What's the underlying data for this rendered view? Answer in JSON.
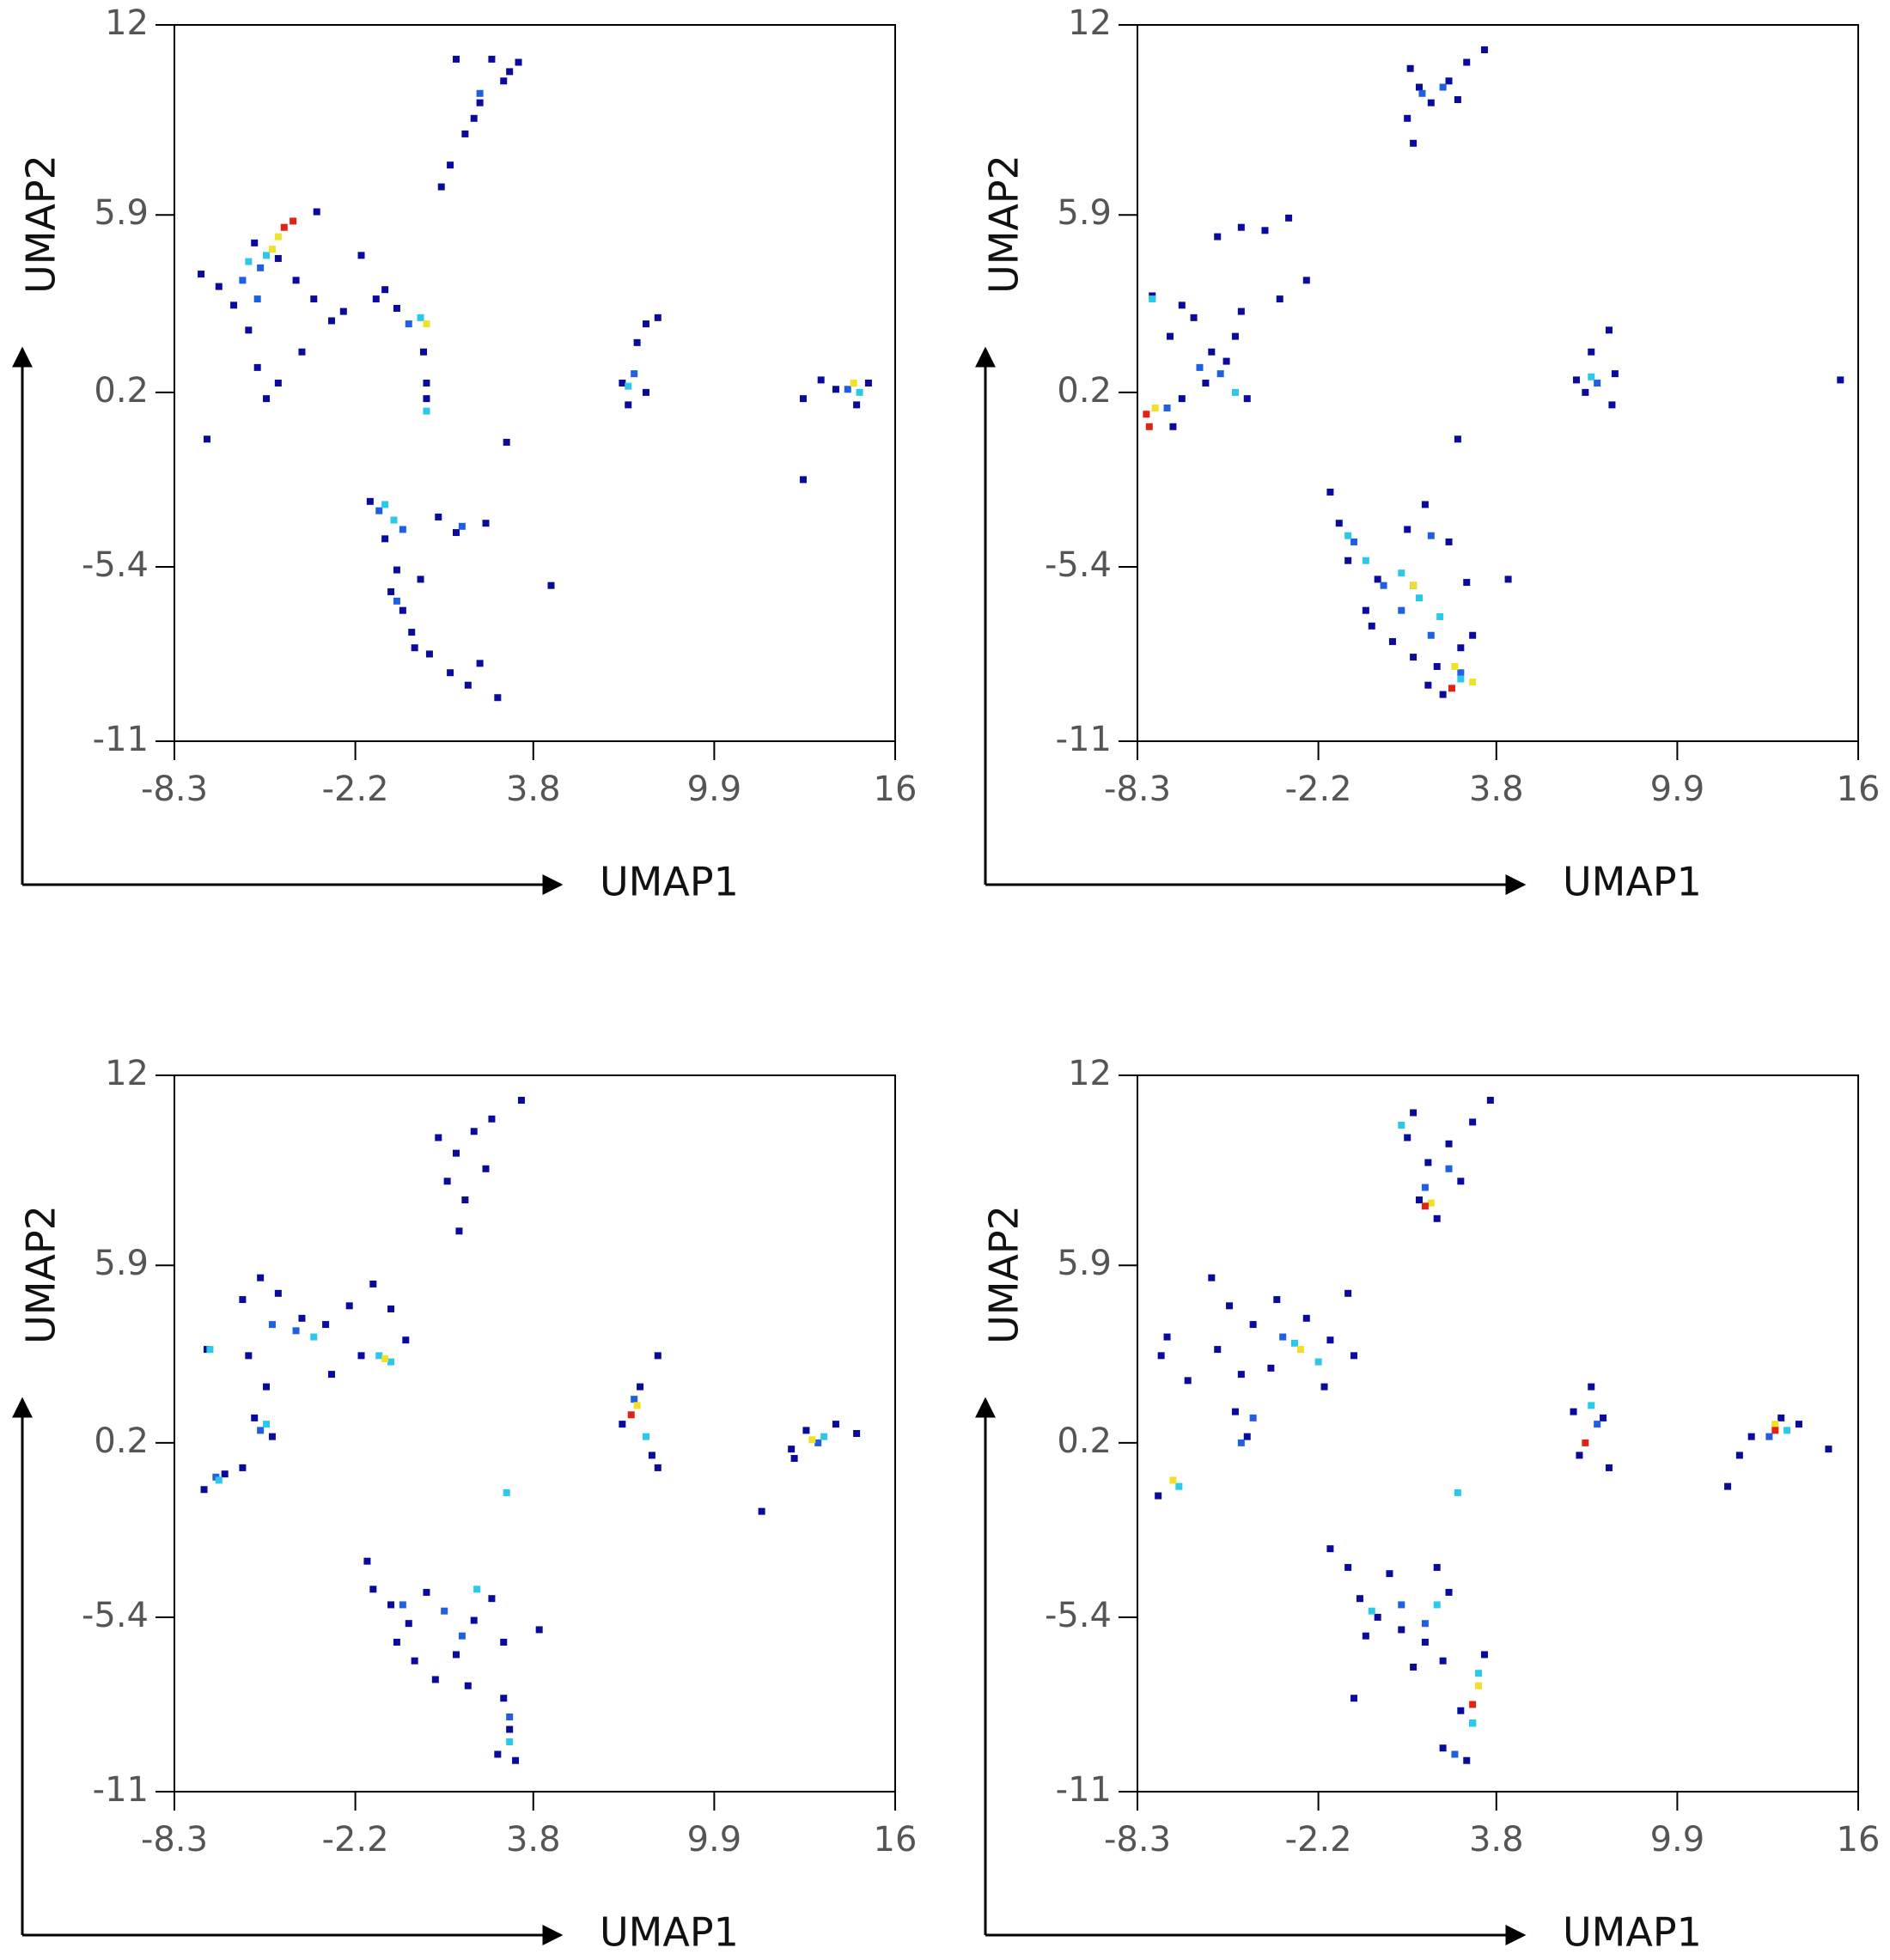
{
  "chart_data": [
    {
      "type": "scatter",
      "x_label": "UMAP1",
      "y_label": "UMAP2",
      "xlim": [
        -8.3,
        16
      ],
      "ylim": [
        -11,
        12
      ],
      "xticks": [
        -8.3,
        -2.2,
        3.8,
        9.9,
        16
      ],
      "yticks": [
        12,
        5.9,
        0.2,
        -5.4,
        -11
      ],
      "series": [
        {
          "color": "#0a0a9c",
          "x": [
            1.0,
            1.5,
            2.0,
            2.8,
            3.3,
            1.2,
            2.4,
            0.7,
            1.8,
            3.0,
            -7.4,
            -6.8,
            -6.3,
            -5.8,
            -5.5,
            -5.2,
            -4.8,
            -4.2,
            -3.6,
            -3.0,
            -2.6,
            -2.0,
            -1.5,
            -0.8,
            -5.6,
            -3.5,
            -4.0,
            -4.8,
            0.1,
            0.2,
            0.2,
            -1.2,
            6.8,
            7.3,
            7.6,
            8.0,
            7.0,
            7.6,
            12.9,
            13.5,
            14.0,
            14.7,
            15.1,
            12.9,
            -1.7,
            -1.2,
            -0.8,
            -0.6,
            -0.3,
            0.3,
            1.0,
            1.6,
            2.6,
            2.0,
            1.2,
            2.2,
            -1.0,
            0.0,
            0.6,
            -0.2,
            -7.2,
            2.9,
            4.4
          ],
          "values": [
            7.5,
            8.5,
            9.5,
            10.2,
            10.8,
            10.9,
            10.9,
            6.8,
            9.0,
            10.5,
            4.0,
            3.6,
            3.0,
            2.2,
            1.0,
            0.0,
            4.5,
            3.8,
            3.2,
            2.5,
            2.8,
            4.6,
            3.2,
            2.9,
            5.0,
            6.0,
            1.5,
            0.5,
            1.5,
            0.5,
            0.0,
            3.5,
            0.5,
            1.8,
            2.4,
            2.6,
            -0.2,
            0.2,
            0.0,
            0.6,
            0.3,
            -0.2,
            0.5,
            -2.6,
            -3.3,
            -4.5,
            -5.5,
            -6.8,
            -7.5,
            -8.2,
            -8.8,
            -9.2,
            -9.6,
            -8.5,
            -4.3,
            -4.0,
            -6.2,
            -5.8,
            -3.8,
            -8.0,
            -1.3,
            -1.4,
            -6.0
          ]
        },
        {
          "color": "#1f5fe0",
          "x": [
            -6.0,
            -5.5,
            -5.4,
            -0.4,
            7.2,
            14.4,
            -1.4,
            -0.6,
            1.4,
            2.0,
            -0.8
          ],
          "values": [
            3.8,
            3.2,
            4.2,
            2.4,
            0.8,
            0.3,
            -3.6,
            -4.2,
            -4.1,
            9.8,
            -6.5
          ]
        },
        {
          "color": "#2cc8e8",
          "x": [
            -5.8,
            -5.2,
            0.0,
            0.2,
            7.0,
            14.8,
            -0.9,
            -1.2
          ],
          "values": [
            4.4,
            4.6,
            2.6,
            -0.4,
            0.4,
            0.2,
            -3.9,
            -3.4
          ]
        },
        {
          "color": "#f0e028",
          "x": [
            -4.8,
            -5.0,
            0.2,
            14.6
          ],
          "values": [
            5.2,
            4.8,
            2.4,
            0.5
          ]
        },
        {
          "color": "#e02414",
          "x": [
            -4.6,
            -4.3
          ],
          "values": [
            5.5,
            5.7
          ]
        }
      ]
    },
    {
      "type": "scatter",
      "x_label": "UMAP1",
      "y_label": "UMAP2",
      "xlim": [
        -8.3,
        16
      ],
      "ylim": [
        -11,
        12
      ],
      "xticks": [
        -8.3,
        -2.2,
        3.8,
        9.9,
        16
      ],
      "yticks": [
        12,
        5.9,
        0.2,
        -5.4,
        -11
      ],
      "series": [
        {
          "color": "#0a0a9c",
          "x": [
            0.8,
            1.2,
            1.6,
            2.2,
            2.8,
            3.4,
            1.0,
            0.9,
            2.5,
            -7.8,
            -7.2,
            -6.8,
            -6.4,
            -5.8,
            -5.3,
            -5.0,
            -4.8,
            -6.0,
            -6.8,
            -5.6,
            -4.8,
            -4.0,
            -3.2,
            -2.6,
            -7.1,
            -3.5,
            -4.6,
            6.5,
            7.0,
            7.6,
            7.8,
            7.7,
            6.8,
            15.4,
            2.5,
            4.2,
            -1.8,
            -1.5,
            -1.2,
            -0.6,
            -0.4,
            0.3,
            1.0,
            1.8,
            2.6,
            3.0,
            2.2,
            2.8,
            -0.2,
            0.8,
            1.4,
            1.0,
            1.5,
            2.0
          ],
          "values": [
            9.0,
            10.0,
            9.5,
            10.2,
            10.8,
            11.2,
            8.2,
            10.6,
            9.6,
            3.3,
            2.0,
            3.0,
            2.6,
            1.5,
            1.2,
            2.0,
            2.8,
            0.5,
            0.0,
            5.2,
            5.5,
            5.4,
            5.8,
            3.8,
            -0.9,
            3.2,
            0.0,
            0.6,
            1.5,
            2.2,
            0.8,
            -0.2,
            0.2,
            0.6,
            -1.3,
            -5.8,
            -3.0,
            -4.0,
            -5.2,
            -6.8,
            -7.3,
            -7.8,
            -8.3,
            -8.6,
            -8.0,
            -7.6,
            -4.6,
            -5.9,
            -5.8,
            -4.2,
            -3.4,
            -6.0,
            -9.2,
            -9.5
          ]
        },
        {
          "color": "#1f5fe0",
          "x": [
            1.3,
            2.0,
            -6.2,
            -5.5,
            -7.3,
            7.2,
            -1.0,
            0.0,
            0.6,
            1.6,
            2.6,
            1.6
          ],
          "values": [
            9.8,
            10.0,
            1.0,
            0.8,
            -0.3,
            0.5,
            -4.6,
            -6.0,
            -6.8,
            -7.6,
            -8.8,
            -4.4
          ]
        },
        {
          "color": "#2cc8e8",
          "x": [
            -5.0,
            -7.8,
            7.0,
            -0.6,
            0.6,
            1.2,
            1.9,
            2.6,
            -1.2
          ],
          "values": [
            0.2,
            3.2,
            0.7,
            -5.2,
            -5.6,
            -6.4,
            -7.0,
            -9.0,
            -4.4
          ]
        },
        {
          "color": "#f0e028",
          "x": [
            -7.7,
            1.0,
            2.4,
            3.0
          ],
          "values": [
            -0.3,
            -6.0,
            -8.6,
            -9.1
          ]
        },
        {
          "color": "#e02414",
          "x": [
            -8.0,
            -7.9,
            2.3
          ],
          "values": [
            -0.5,
            -0.9,
            -9.3
          ]
        }
      ]
    },
    {
      "type": "scatter",
      "x_label": "UMAP1",
      "y_label": "UMAP2",
      "xlim": [
        -8.3,
        16
      ],
      "ylim": [
        -11,
        12
      ],
      "xticks": [
        -8.3,
        -2.2,
        3.8,
        9.9,
        16
      ],
      "yticks": [
        12,
        5.9,
        0.2,
        -5.4,
        -11
      ],
      "series": [
        {
          "color": "#0a0a9c",
          "x": [
            0.6,
            1.2,
            1.8,
            2.4,
            3.4,
            1.5,
            1.3,
            2.2,
            0.9,
            -7.2,
            -6.0,
            -5.4,
            -4.8,
            -4.0,
            -3.2,
            -2.4,
            -1.6,
            -1.0,
            -0.5,
            -2.0,
            -5.8,
            -5.2,
            -5.6,
            -5.0,
            -7.3,
            -6.6,
            -6.0,
            -3.0,
            6.8,
            7.4,
            8.0,
            7.8,
            8.0,
            12.5,
            13.0,
            14.0,
            14.7,
            12.6,
            11.5,
            -1.8,
            -1.6,
            -1.0,
            -0.8,
            -0.2,
            0.5,
            1.2,
            1.8,
            2.4,
            2.8,
            4.0,
            2.8,
            3.0,
            2.6,
            3.2,
            0.2,
            -0.4,
            1.6
          ],
          "values": [
            10.0,
            9.5,
            10.2,
            10.6,
            11.2,
            8.0,
            7.0,
            9.0,
            8.6,
            3.2,
            4.8,
            5.5,
            5.0,
            4.2,
            4.0,
            4.6,
            5.3,
            4.5,
            3.5,
            3.0,
            3.0,
            2.0,
            1.0,
            0.4,
            -1.3,
            -0.8,
            -0.6,
            2.4,
            0.8,
            2.0,
            3.0,
            -0.2,
            -0.6,
            0.0,
            0.6,
            0.8,
            0.5,
            -0.3,
            -2.0,
            -3.6,
            -4.5,
            -5.0,
            -6.2,
            -6.8,
            -7.4,
            -6.6,
            -5.5,
            -4.8,
            -6.2,
            -5.8,
            -8.0,
            -9.0,
            -9.8,
            -10.0,
            -4.6,
            -5.6,
            -7.6
          ]
        },
        {
          "color": "#1f5fe0",
          "x": [
            -5.0,
            -4.2,
            -6.9,
            -5.4,
            7.2,
            13.4,
            0.8,
            1.4,
            -0.6,
            3.0
          ],
          "values": [
            4.0,
            3.8,
            -0.9,
            0.6,
            1.6,
            0.2,
            -5.2,
            -6.0,
            -5.0,
            -8.6
          ]
        },
        {
          "color": "#2cc8e8",
          "x": [
            -7.1,
            -3.6,
            -1.0,
            -1.4,
            -5.2,
            7.6,
            13.6,
            2.9,
            1.9,
            3.0,
            -6.8
          ],
          "values": [
            3.2,
            3.6,
            2.8,
            3.0,
            0.8,
            0.4,
            0.4,
            -1.4,
            -4.5,
            -9.4,
            -1.0
          ]
        },
        {
          "color": "#f0e028",
          "x": [
            7.3,
            13.2,
            -1.2
          ],
          "values": [
            1.4,
            0.3,
            2.9
          ]
        },
        {
          "color": "#e02414",
          "x": [
            7.1
          ],
          "values": [
            1.1
          ]
        }
      ]
    },
    {
      "type": "scatter",
      "x_label": "UMAP1",
      "y_label": "UMAP2",
      "xlim": [
        -8.3,
        16
      ],
      "ylim": [
        -11,
        12
      ],
      "xticks": [
        -8.3,
        -2.2,
        3.8,
        9.9,
        16
      ],
      "yticks": [
        12,
        5.9,
        0.2,
        -5.4,
        -11
      ],
      "series": [
        {
          "color": "#0a0a9c",
          "x": [
            0.8,
            1.5,
            2.2,
            3.0,
            3.6,
            1.2,
            1.8,
            2.6,
            1.0,
            -7.3,
            -7.5,
            -5.8,
            -5.2,
            -4.4,
            -3.6,
            -2.6,
            -1.8,
            -1.2,
            -1.0,
            -5.6,
            -4.8,
            -5.0,
            -4.6,
            -6.6,
            -7.6,
            -3.8,
            -2.0,
            6.4,
            7.0,
            7.4,
            7.6,
            6.6,
            12.0,
            12.4,
            13.4,
            14.0,
            15.0,
            11.6,
            -1.8,
            -1.2,
            -0.8,
            -0.2,
            0.6,
            1.4,
            2.2,
            1.8,
            0.2,
            -0.6,
            -1.0,
            2.0,
            2.6,
            2.0,
            2.8,
            3.4,
            1.0
          ],
          "values": [
            10.0,
            9.2,
            9.8,
            10.5,
            11.2,
            8.0,
            7.4,
            8.6,
            10.8,
            3.6,
            3.0,
            5.5,
            4.6,
            4.0,
            4.8,
            4.2,
            3.5,
            5.0,
            3.0,
            3.2,
            2.4,
            1.2,
            0.4,
            2.2,
            -1.5,
            2.6,
            2.0,
            1.2,
            2.0,
            1.0,
            -0.6,
            -0.2,
            -0.2,
            0.4,
            1.0,
            0.8,
            0.0,
            -1.2,
            -3.2,
            -3.8,
            -4.8,
            -5.4,
            -5.8,
            -6.2,
            -4.6,
            -3.8,
            -4.0,
            -6.0,
            -8.0,
            -6.8,
            -8.4,
            -9.6,
            -10.0,
            -6.6,
            -7.0
          ]
        },
        {
          "color": "#1f5fe0",
          "x": [
            1.4,
            2.2,
            -3.4,
            -4.4,
            -4.8,
            7.2,
            13.0,
            0.6,
            1.4,
            3.0,
            2.4
          ],
          "values": [
            8.4,
            9.0,
            3.6,
            1.0,
            0.2,
            0.8,
            0.4,
            -5.0,
            -5.6,
            -8.8,
            -9.8
          ]
        },
        {
          "color": "#2cc8e8",
          "x": [
            0.6,
            -3.0,
            -2.2,
            -6.9,
            7.0,
            13.6,
            2.5,
            1.8,
            3.2,
            3.0,
            -0.4
          ],
          "values": [
            10.4,
            3.4,
            2.8,
            -1.2,
            1.4,
            0.6,
            -1.4,
            -5.0,
            -7.2,
            -8.8,
            -5.2
          ]
        },
        {
          "color": "#f0e028",
          "x": [
            -2.8,
            -7.1,
            1.6,
            3.2,
            13.2
          ],
          "values": [
            3.2,
            -1.0,
            7.9,
            -7.6,
            0.8
          ]
        },
        {
          "color": "#e02414",
          "x": [
            1.4,
            6.8,
            13.2,
            3.0
          ],
          "values": [
            7.8,
            0.2,
            0.6,
            -8.2
          ]
        }
      ]
    }
  ]
}
